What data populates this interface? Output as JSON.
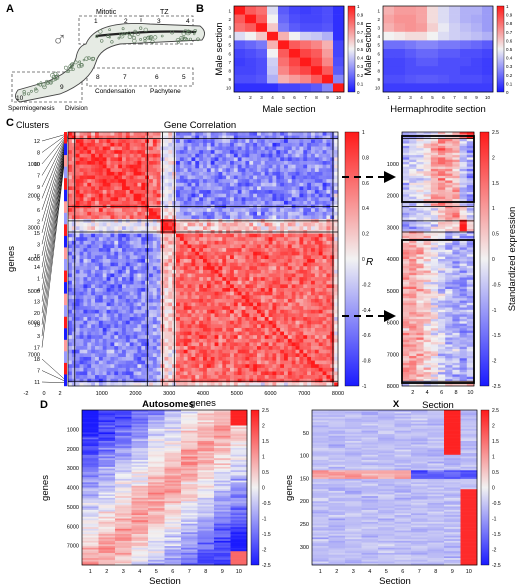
{
  "panel_letters": [
    "A",
    "B",
    "C",
    "D"
  ],
  "panel_a": {
    "symbol": "♂",
    "region_labels": {
      "mitotic": "Mitotic",
      "tz": "TZ",
      "condensation": "Condensation",
      "pachytene": "Pachytene",
      "spermiogenesis": "Spermiogenesis",
      "division": "Division"
    },
    "section_numbers": [
      "1",
      "2",
      "3",
      "4",
      "5",
      "6",
      "7",
      "8",
      "9",
      "10"
    ]
  },
  "colors": {
    "low": "#1a1aff",
    "mid": "#f2f2f2",
    "high": "#ff1a1a",
    "worm_fill": "#e6ebe4",
    "nuclei": "#5c7a5c",
    "rachis": "#222222"
  },
  "chart_data": [
    {
      "id": "B-male",
      "type": "heatmap",
      "title": "",
      "xlabel": "Male section",
      "ylabel": "Male section",
      "x_ticks": [
        "1",
        "2",
        "3",
        "4",
        "5",
        "6",
        "7",
        "8",
        "9",
        "10"
      ],
      "y_ticks": [
        "1",
        "2",
        "3",
        "4",
        "5",
        "6",
        "7",
        "8",
        "9",
        "10"
      ],
      "colorbar_ticks": [
        "1",
        "0.9",
        "0.8",
        "0.7",
        "0.6",
        "0.5",
        "0.4",
        "0.3",
        "0.2",
        "0.1",
        "0"
      ],
      "vmin": 0,
      "vmax": 1,
      "values": [
        [
          1.0,
          0.85,
          0.8,
          0.45,
          0.15,
          0.1,
          0.08,
          0.1,
          0.12,
          0.05
        ],
        [
          0.85,
          1.0,
          0.85,
          0.5,
          0.18,
          0.12,
          0.1,
          0.1,
          0.12,
          0.05
        ],
        [
          0.8,
          0.85,
          1.0,
          0.6,
          0.22,
          0.15,
          0.12,
          0.12,
          0.14,
          0.05
        ],
        [
          0.45,
          0.5,
          0.6,
          1.0,
          0.65,
          0.5,
          0.42,
          0.4,
          0.35,
          0.05
        ],
        [
          0.15,
          0.18,
          0.22,
          0.65,
          1.0,
          0.85,
          0.8,
          0.75,
          0.65,
          0.1
        ],
        [
          0.1,
          0.12,
          0.15,
          0.5,
          0.85,
          1.0,
          0.9,
          0.85,
          0.7,
          0.1
        ],
        [
          0.08,
          0.1,
          0.12,
          0.42,
          0.8,
          0.9,
          1.0,
          0.9,
          0.75,
          0.12
        ],
        [
          0.1,
          0.1,
          0.12,
          0.4,
          0.75,
          0.85,
          0.9,
          1.0,
          0.85,
          0.15
        ],
        [
          0.12,
          0.12,
          0.14,
          0.35,
          0.65,
          0.7,
          0.75,
          0.85,
          1.0,
          0.25
        ],
        [
          0.05,
          0.05,
          0.05,
          0.05,
          0.1,
          0.1,
          0.12,
          0.15,
          0.25,
          1.0
        ]
      ]
    },
    {
      "id": "B-herm",
      "type": "heatmap",
      "title": "",
      "xlabel": "Hermaphrodite section",
      "ylabel": "Male section",
      "x_ticks": [
        "1",
        "2",
        "3",
        "4",
        "5",
        "6",
        "7",
        "8",
        "9",
        "10"
      ],
      "y_ticks": [
        "1",
        "2",
        "3",
        "4",
        "5",
        "6",
        "7",
        "8",
        "9",
        "10"
      ],
      "colorbar_ticks": [
        "1",
        "0.9",
        "0.8",
        "0.7",
        "0.6",
        "0.5",
        "0.4",
        "0.3",
        "0.2",
        "0.1",
        "0"
      ],
      "vmin": 0,
      "vmax": 1,
      "values": [
        [
          0.65,
          0.7,
          0.7,
          0.68,
          0.55,
          0.45,
          0.4,
          0.35,
          0.35,
          0.3
        ],
        [
          0.68,
          0.72,
          0.72,
          0.68,
          0.55,
          0.45,
          0.4,
          0.35,
          0.33,
          0.3
        ],
        [
          0.65,
          0.7,
          0.72,
          0.7,
          0.58,
          0.48,
          0.42,
          0.38,
          0.35,
          0.3
        ],
        [
          0.5,
          0.52,
          0.55,
          0.55,
          0.5,
          0.45,
          0.42,
          0.4,
          0.38,
          0.35
        ],
        [
          0.2,
          0.2,
          0.22,
          0.25,
          0.25,
          0.22,
          0.22,
          0.2,
          0.18,
          0.15
        ],
        [
          0.12,
          0.12,
          0.15,
          0.18,
          0.18,
          0.15,
          0.15,
          0.12,
          0.12,
          0.1
        ],
        [
          0.1,
          0.1,
          0.12,
          0.15,
          0.15,
          0.12,
          0.12,
          0.12,
          0.1,
          0.08
        ],
        [
          0.1,
          0.1,
          0.12,
          0.12,
          0.12,
          0.12,
          0.12,
          0.1,
          0.1,
          0.08
        ],
        [
          0.12,
          0.12,
          0.14,
          0.15,
          0.15,
          0.14,
          0.12,
          0.12,
          0.12,
          0.1
        ],
        [
          0.08,
          0.08,
          0.08,
          0.08,
          0.08,
          0.08,
          0.08,
          0.08,
          0.08,
          0.08
        ]
      ]
    },
    {
      "id": "C-correlation",
      "type": "heatmap",
      "title": "Gene Correlation",
      "xlabel": "genes",
      "ylabel": "genes",
      "clusters_label": "Clusters",
      "x_ticks": [
        "-2",
        "0",
        "2",
        "1000",
        "2000",
        "3000",
        "4000",
        "5000",
        "6000",
        "7000",
        "8000"
      ],
      "y_ticks": [
        "1000",
        "2000",
        "3000",
        "4000",
        "5000",
        "6000",
        "7000"
      ],
      "cluster_ids": [
        "12",
        "8",
        "10",
        "7",
        "9",
        "5",
        "6",
        "2",
        "15",
        "3",
        "16",
        "14",
        "1",
        "4",
        "13",
        "20",
        "19",
        "3",
        "17",
        "18",
        "7",
        "11"
      ],
      "xlim": [
        0,
        8200
      ],
      "ylim": [
        0,
        8200
      ],
      "block_bounds": [
        0,
        200,
        2350,
        2800,
        3150,
        7850,
        8000
      ],
      "block_values": [
        [
          0.95,
          0.55,
          0.5,
          -0.1,
          -0.45,
          -0.1
        ],
        [
          0.55,
          0.75,
          0.6,
          -0.05,
          -0.5,
          -0.1
        ],
        [
          0.5,
          0.6,
          0.85,
          0.1,
          -0.4,
          0.0
        ],
        [
          -0.1,
          -0.05,
          0.1,
          0.9,
          0.2,
          0.1
        ],
        [
          -0.45,
          -0.5,
          -0.4,
          0.2,
          0.65,
          0.1
        ],
        [
          -0.1,
          -0.1,
          0.0,
          0.1,
          0.1,
          0.5
        ]
      ],
      "colorbar_label": "R",
      "colorbar_ticks": [
        "1",
        "0.8",
        "0.6",
        "0.4",
        "0.2",
        "0",
        "-0.2",
        "-0.4",
        "-0.6",
        "-0.8",
        "-1"
      ],
      "vmin": -1,
      "vmax": 1
    },
    {
      "id": "C-expression",
      "type": "heatmap",
      "title": "",
      "xlabel": "Section",
      "ylabel": "",
      "x_ticks": [
        "2",
        "4",
        "6",
        "8",
        "10"
      ],
      "y_ticks": [
        "1000",
        "2000",
        "3000",
        "4000",
        "5000",
        "6000",
        "7000",
        "8000"
      ],
      "block_bounds": [
        0,
        200,
        2350,
        2800,
        3150,
        7850,
        8000
      ],
      "block_profiles": [
        [
          -1.0,
          -0.8,
          -0.5,
          -0.3,
          0.0,
          0.2,
          0.5,
          0.8,
          1.5,
          2.5
        ],
        [
          -0.5,
          -0.3,
          -0.2,
          0.2,
          0.8,
          1.2,
          1.0,
          0.6,
          -0.5,
          -1.0
        ],
        [
          -0.6,
          -0.5,
          -0.4,
          -0.2,
          0.2,
          0.6,
          1.0,
          1.2,
          0.5,
          -0.8
        ],
        [
          -0.8,
          -0.7,
          -0.6,
          -0.4,
          -0.2,
          0.1,
          0.3,
          0.6,
          2.3,
          0.5
        ],
        [
          0.9,
          0.9,
          0.7,
          0.4,
          0.0,
          -0.4,
          -0.7,
          -0.8,
          -0.9,
          -0.7
        ],
        [
          -0.5,
          -0.4,
          -0.3,
          -0.2,
          0.0,
          0.2,
          0.3,
          0.4,
          0.6,
          1.2
        ]
      ],
      "colorbar_label": "Standardized expression",
      "colorbar_ticks": [
        "2.5",
        "2",
        "1.5",
        "1",
        "0.5",
        "0",
        "-0.5",
        "-1",
        "-1.5",
        "-2",
        "-2.5"
      ],
      "vmin": -2.5,
      "vmax": 2.5
    },
    {
      "id": "D-autosomes",
      "type": "heatmap",
      "title": "Autosomes",
      "xlabel": "Section",
      "ylabel": "genes",
      "x_ticks": [
        "1",
        "2",
        "3",
        "4",
        "5",
        "6",
        "7",
        "8",
        "9",
        "10"
      ],
      "y_ticks": [
        "1000",
        "2000",
        "3000",
        "4000",
        "5000",
        "6000",
        "7000"
      ],
      "colorbar_ticks": [
        "2.5",
        "2",
        "1.5",
        "1",
        "0.5",
        "0",
        "-0.5",
        "-1",
        "-1.5",
        "-2",
        "-2.5"
      ],
      "vmin": -2.5,
      "vmax": 2.5
    },
    {
      "id": "D-X",
      "type": "heatmap",
      "title": "X",
      "xlabel": "Section",
      "ylabel": "genes",
      "x_ticks": [
        "1",
        "2",
        "3",
        "4",
        "5",
        "6",
        "7",
        "8",
        "9",
        "10"
      ],
      "y_ticks": [
        "50",
        "100",
        "150",
        "200",
        "250",
        "300"
      ],
      "colorbar_ticks": [
        "2.5",
        "2",
        "1.5",
        "1",
        "0.5",
        "0",
        "-0.5",
        "-1",
        "-1.5",
        "-2",
        "-2.5"
      ],
      "vmin": -2.5,
      "vmax": 2.5
    }
  ]
}
